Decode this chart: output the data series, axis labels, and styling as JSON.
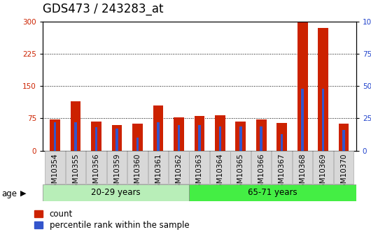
{
  "title": "GDS473 / 243283_at",
  "samples": [
    "GSM10354",
    "GSM10355",
    "GSM10356",
    "GSM10359",
    "GSM10360",
    "GSM10361",
    "GSM10362",
    "GSM10363",
    "GSM10364",
    "GSM10365",
    "GSM10366",
    "GSM10367",
    "GSM10368",
    "GSM10369",
    "GSM10370"
  ],
  "count_values": [
    72,
    115,
    68,
    60,
    62,
    105,
    78,
    80,
    82,
    68,
    73,
    64,
    300,
    285,
    62
  ],
  "percentile_values": [
    22,
    22,
    18,
    17,
    10,
    22,
    20,
    20,
    19,
    19,
    19,
    13,
    48,
    48,
    16
  ],
  "group1_label": "20-29 years",
  "group1_count": 7,
  "group2_label": "65-71 years",
  "group2_count": 8,
  "age_label": "age",
  "legend_count": "count",
  "legend_percentile": "percentile rank within the sample",
  "ylim_left": [
    0,
    300
  ],
  "ylim_right": [
    0,
    100
  ],
  "yticks_left": [
    0,
    75,
    150,
    225,
    300
  ],
  "yticks_right": [
    0,
    25,
    50,
    75,
    100
  ],
  "bar_color_count": "#cc2200",
  "bar_color_percentile": "#3355cc",
  "group1_bg": "#b8eeb8",
  "group2_bg": "#44ee44",
  "tick_bg": "#d8d8d8",
  "color_left": "#cc2200",
  "color_right": "#2244cc",
  "title_fontsize": 12,
  "tick_fontsize": 7.5,
  "label_fontsize": 8.5,
  "bar_width": 0.5,
  "pct_bar_width": 0.12
}
